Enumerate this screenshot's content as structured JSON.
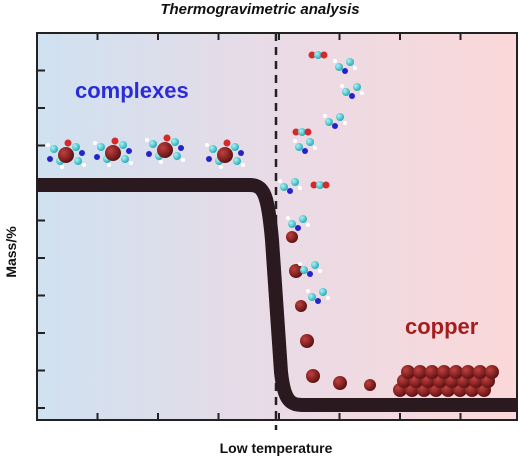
{
  "title": "Thermogravimetric analysis",
  "y_axis_label": "Mass/%",
  "x_axis_label": "Low temperature",
  "annotations": [
    "complexes",
    "copper"
  ]
}
